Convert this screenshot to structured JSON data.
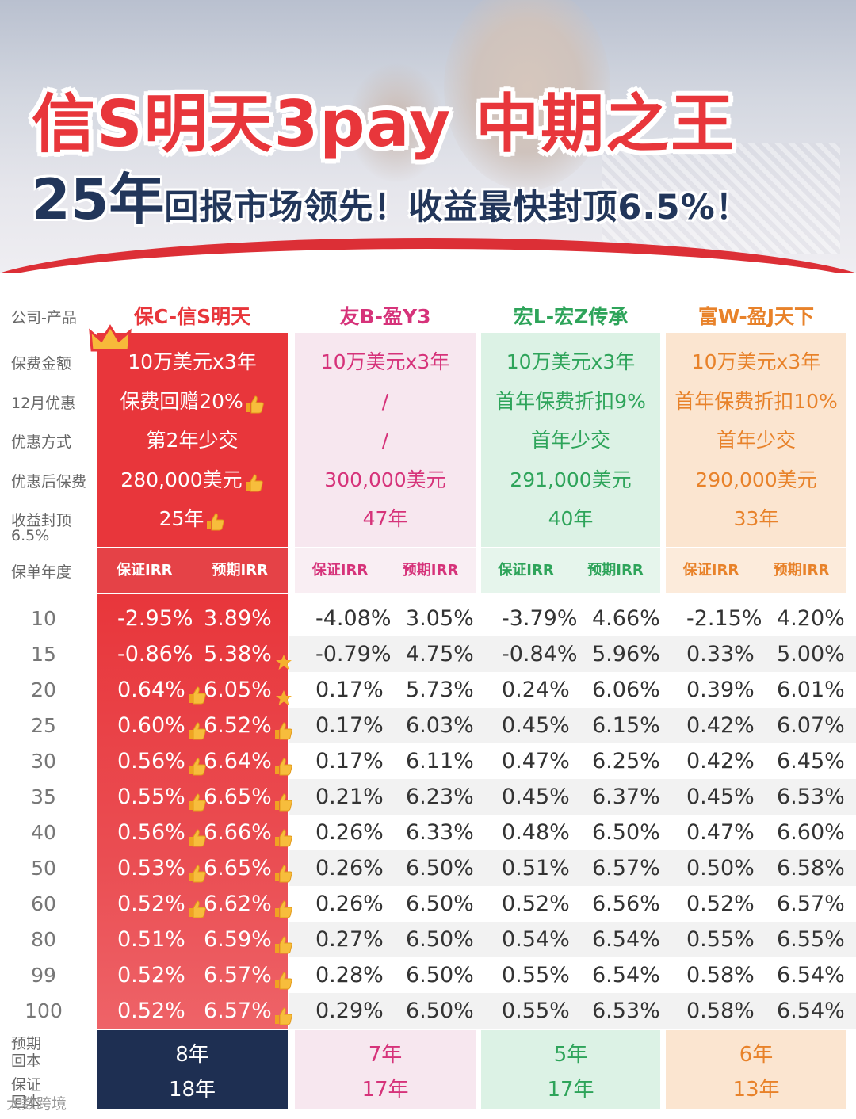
{
  "hero": {
    "title": "信S明天3pay 中期之王",
    "subtitle_big": "25年",
    "subtitle_rest": "回报市场领先！收益最快封顶6.5%！"
  },
  "labels": {
    "company": "公司-产品",
    "premium": "保费金额",
    "dec_offer": "12月优惠",
    "offer_method": "优惠方式",
    "after_offer": "优惠后保费",
    "cap_line1": "收益封顶",
    "cap_line2": "6.5%",
    "policy_year": "保单年度",
    "payback_expected_1": "预期",
    "payback_expected_2": "回本",
    "payback_guaranteed_1": "保证",
    "payback_guaranteed_2": "回本"
  },
  "colors": {
    "red": "#e8363b",
    "pink": "#d6337a",
    "green": "#2ea45a",
    "orange": "#e8822a",
    "navy": "#1e2f52"
  },
  "products": [
    {
      "name": "保C-信S明天",
      "premium": "10万美元x3年",
      "dec_offer": "保费回赠20%",
      "offer_method": "第2年少交",
      "after_offer": "280,000美元",
      "cap_year": "25年",
      "irr_g_label": "保证IRR",
      "irr_e_label": "预期IRR",
      "guaranteed": [
        "-2.95%",
        "-0.86%",
        "0.64%",
        "0.60%",
        "0.56%",
        "0.55%",
        "0.56%",
        "0.53%",
        "0.52%",
        "0.51%",
        "0.52%",
        "0.52%"
      ],
      "expected": [
        "3.89%",
        "5.38%",
        "6.05%",
        "6.52%",
        "6.64%",
        "6.65%",
        "6.66%",
        "6.65%",
        "6.62%",
        "6.59%",
        "6.57%",
        "6.57%"
      ],
      "payback_expected": "8年",
      "payback_guaranteed": "18年"
    },
    {
      "name": "友B-盈Y3",
      "premium": "10万美元x3年",
      "dec_offer": "/",
      "offer_method": "/",
      "after_offer": "300,000美元",
      "cap_year": "47年",
      "irr_g_label": "保证IRR",
      "irr_e_label": "预期IRR",
      "guaranteed": [
        "-4.08%",
        "-0.79%",
        "0.17%",
        "0.17%",
        "0.17%",
        "0.21%",
        "0.26%",
        "0.26%",
        "0.26%",
        "0.27%",
        "0.28%",
        "0.29%"
      ],
      "expected": [
        "3.05%",
        "4.75%",
        "5.73%",
        "6.03%",
        "6.11%",
        "6.23%",
        "6.33%",
        "6.50%",
        "6.50%",
        "6.50%",
        "6.50%",
        "6.50%"
      ],
      "payback_expected": "7年",
      "payback_guaranteed": "17年"
    },
    {
      "name": "宏L-宏Z传承",
      "premium": "10万美元x3年",
      "dec_offer": "首年保费折扣9%",
      "offer_method": "首年少交",
      "after_offer": "291,000美元",
      "cap_year": "40年",
      "irr_g_label": "保证IRR",
      "irr_e_label": "预期IRR",
      "guaranteed": [
        "-3.79%",
        "-0.84%",
        "0.24%",
        "0.45%",
        "0.47%",
        "0.45%",
        "0.48%",
        "0.51%",
        "0.52%",
        "0.54%",
        "0.55%",
        "0.55%"
      ],
      "expected": [
        "4.66%",
        "5.96%",
        "6.06%",
        "6.15%",
        "6.25%",
        "6.37%",
        "6.50%",
        "6.57%",
        "6.56%",
        "6.54%",
        "6.54%",
        "6.53%"
      ],
      "payback_expected": "5年",
      "payback_guaranteed": "17年"
    },
    {
      "name": "富W-盈J天下",
      "premium": "10万美元x3年",
      "dec_offer": "首年保费折扣10%",
      "offer_method": "首年少交",
      "after_offer": "290,000美元",
      "cap_year": "33年",
      "irr_g_label": "保证IRR",
      "irr_e_label": "预期IRR",
      "guaranteed": [
        "-2.15%",
        "0.33%",
        "0.39%",
        "0.42%",
        "0.42%",
        "0.45%",
        "0.47%",
        "0.50%",
        "0.52%",
        "0.55%",
        "0.58%",
        "0.58%"
      ],
      "expected": [
        "4.20%",
        "5.00%",
        "6.01%",
        "6.07%",
        "6.45%",
        "6.53%",
        "6.60%",
        "6.58%",
        "6.57%",
        "6.55%",
        "6.54%",
        "6.54%"
      ],
      "payback_expected": "6年",
      "payback_guaranteed": "13年"
    }
  ],
  "years": [
    "10",
    "15",
    "20",
    "25",
    "30",
    "35",
    "40",
    "50",
    "60",
    "80",
    "99",
    "100"
  ],
  "badges": {
    "guaranteed": [
      "",
      "",
      "thumb",
      "thumb",
      "thumb",
      "thumb",
      "thumb",
      "thumb",
      "thumb",
      "",
      "",
      ""
    ],
    "expected": [
      "",
      "star",
      "star",
      "thumb",
      "thumb",
      "thumb",
      "thumb",
      "thumb",
      "thumb",
      "thumb",
      "thumb",
      "thumb"
    ],
    "top_rows": [
      "dec_offer",
      "after_offer",
      "cap_year"
    ]
  },
  "watermark": "大数跨境"
}
